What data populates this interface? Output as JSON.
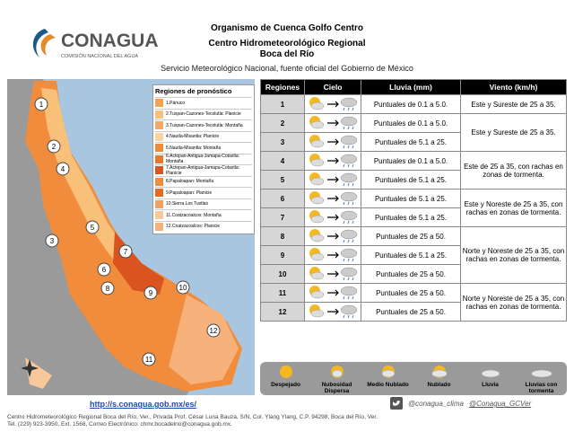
{
  "header": {
    "logo": "CONAGUA",
    "logo_sub": "COMISIÓN NACIONAL DEL AGUA",
    "line1": "Organismo de Cuenca Golfo Centro",
    "line2": "Centro Hidrometeorológico Regional",
    "line3": "Boca del Río",
    "subtitle": "Servicio Meteorológico Nacional, fuente oficial del Gobierno de México"
  },
  "map": {
    "legend_title": "Regiones de pronóstico",
    "regions": [
      {
        "label": "1.Pánuco",
        "color": "#f7a24a"
      },
      {
        "label": "2.Tuxpan-Cazones-Tecolutla: Planicie",
        "color": "#f9c07a"
      },
      {
        "label": "3.Tuxpan-Cazones-Tecolutla: Montaña",
        "color": "#f4a766"
      },
      {
        "label": "4.Nautla-Misantla: Planicie",
        "color": "#fbd3a3"
      },
      {
        "label": "5.Nautla-Misantla: Montaña",
        "color": "#f18a3a"
      },
      {
        "label": "6.Actopan-Antigua-Jamapa-Cotaxtla: Montaña",
        "color": "#e8772d"
      },
      {
        "label": "7.Actopan-Antigua-Jamapa-Cotaxtla: Planicie",
        "color": "#d9541e"
      },
      {
        "label": "8.Papaloapan: Montaña",
        "color": "#f08c3c"
      },
      {
        "label": "9.Papaloapan: Planicie",
        "color": "#e66a1f"
      },
      {
        "label": "10.Sierra Los Tuxtlas",
        "color": "#f3a05c"
      },
      {
        "label": "11.Coatzacoalcos: Montaña",
        "color": "#f8c79a"
      },
      {
        "label": "12.Coatzacoalcos: Planicie",
        "color": "#f6b27a"
      }
    ],
    "markers": [
      "1",
      "2",
      "3",
      "4",
      "5",
      "6",
      "7",
      "8",
      "9",
      "10",
      "11",
      "12"
    ]
  },
  "table": {
    "headers": [
      "Regiones",
      "Cielo",
      "Lluvia (mm)",
      "Viento (km/h)"
    ],
    "groups": [
      {
        "wind": "Este y Sureste de 25 a 35.",
        "rows": [
          {
            "region": "1",
            "rain": "Puntuales de 0.1 a 5.0."
          }
        ]
      },
      {
        "wind": "Este y Sureste de 25 a 35.",
        "rows": [
          {
            "region": "2",
            "rain": "Puntuales de 0.1 a 5.0."
          },
          {
            "region": "3",
            "rain": "Puntuales de 5.1 a 25."
          }
        ]
      },
      {
        "wind": "Este de 25 a 35, con rachas en zonas de tormenta.",
        "rows": [
          {
            "region": "4",
            "rain": "Puntuales de 0.1 a 5.0."
          },
          {
            "region": "5",
            "rain": "Puntuales de 5.1 a 25."
          }
        ]
      },
      {
        "wind": "Este y Noreste de 25 a 35, con rachas en zonas de tormenta.",
        "rows": [
          {
            "region": "6",
            "rain": "Puntuales de 5.1 a 25."
          },
          {
            "region": "7",
            "rain": "Puntuales de 5.1 a 25."
          }
        ]
      },
      {
        "wind": "Norte y Noreste de 25 a 35, con rachas en zonas de tormenta.",
        "rows": [
          {
            "region": "8",
            "rain": "Puntuales de 25 a 50."
          },
          {
            "region": "9",
            "rain": "Puntuales de 5.1 a 25."
          },
          {
            "region": "10",
            "rain": "Puntuales de 25 a 50."
          }
        ]
      },
      {
        "wind": "Norte y Noreste de 25 a 35, con rachas en zonas de tormenta.",
        "rows": [
          {
            "region": "11",
            "rain": "Puntuales de 25 a 50."
          },
          {
            "region": "12",
            "rain": "Puntuales de 25 a 50."
          }
        ]
      }
    ]
  },
  "icon_legend": [
    "Despejado",
    "Nubosidad Dispersa",
    "Medio Nublado",
    "Nublado",
    "Lluvia",
    "Lluvias con tormenta"
  ],
  "footer": {
    "url": "http://s.conagua.gob.mx/es/",
    "twitter1": "@conagua_clima",
    "twitter2": "@Conagua_GCVer",
    "address": "Centro Hidrometeorológico Regional Boca del Río, Ver., Privada Prof. César Luna Bauza, S/N, Col. Ylang Ylang, C.P. 94298, Boca del Río, Ver.",
    "contact": "Tel. (229) 923-3950, Ext. 1568, Correo Electrónico: chmr.bocadelrio@conagua.gob.mx."
  }
}
